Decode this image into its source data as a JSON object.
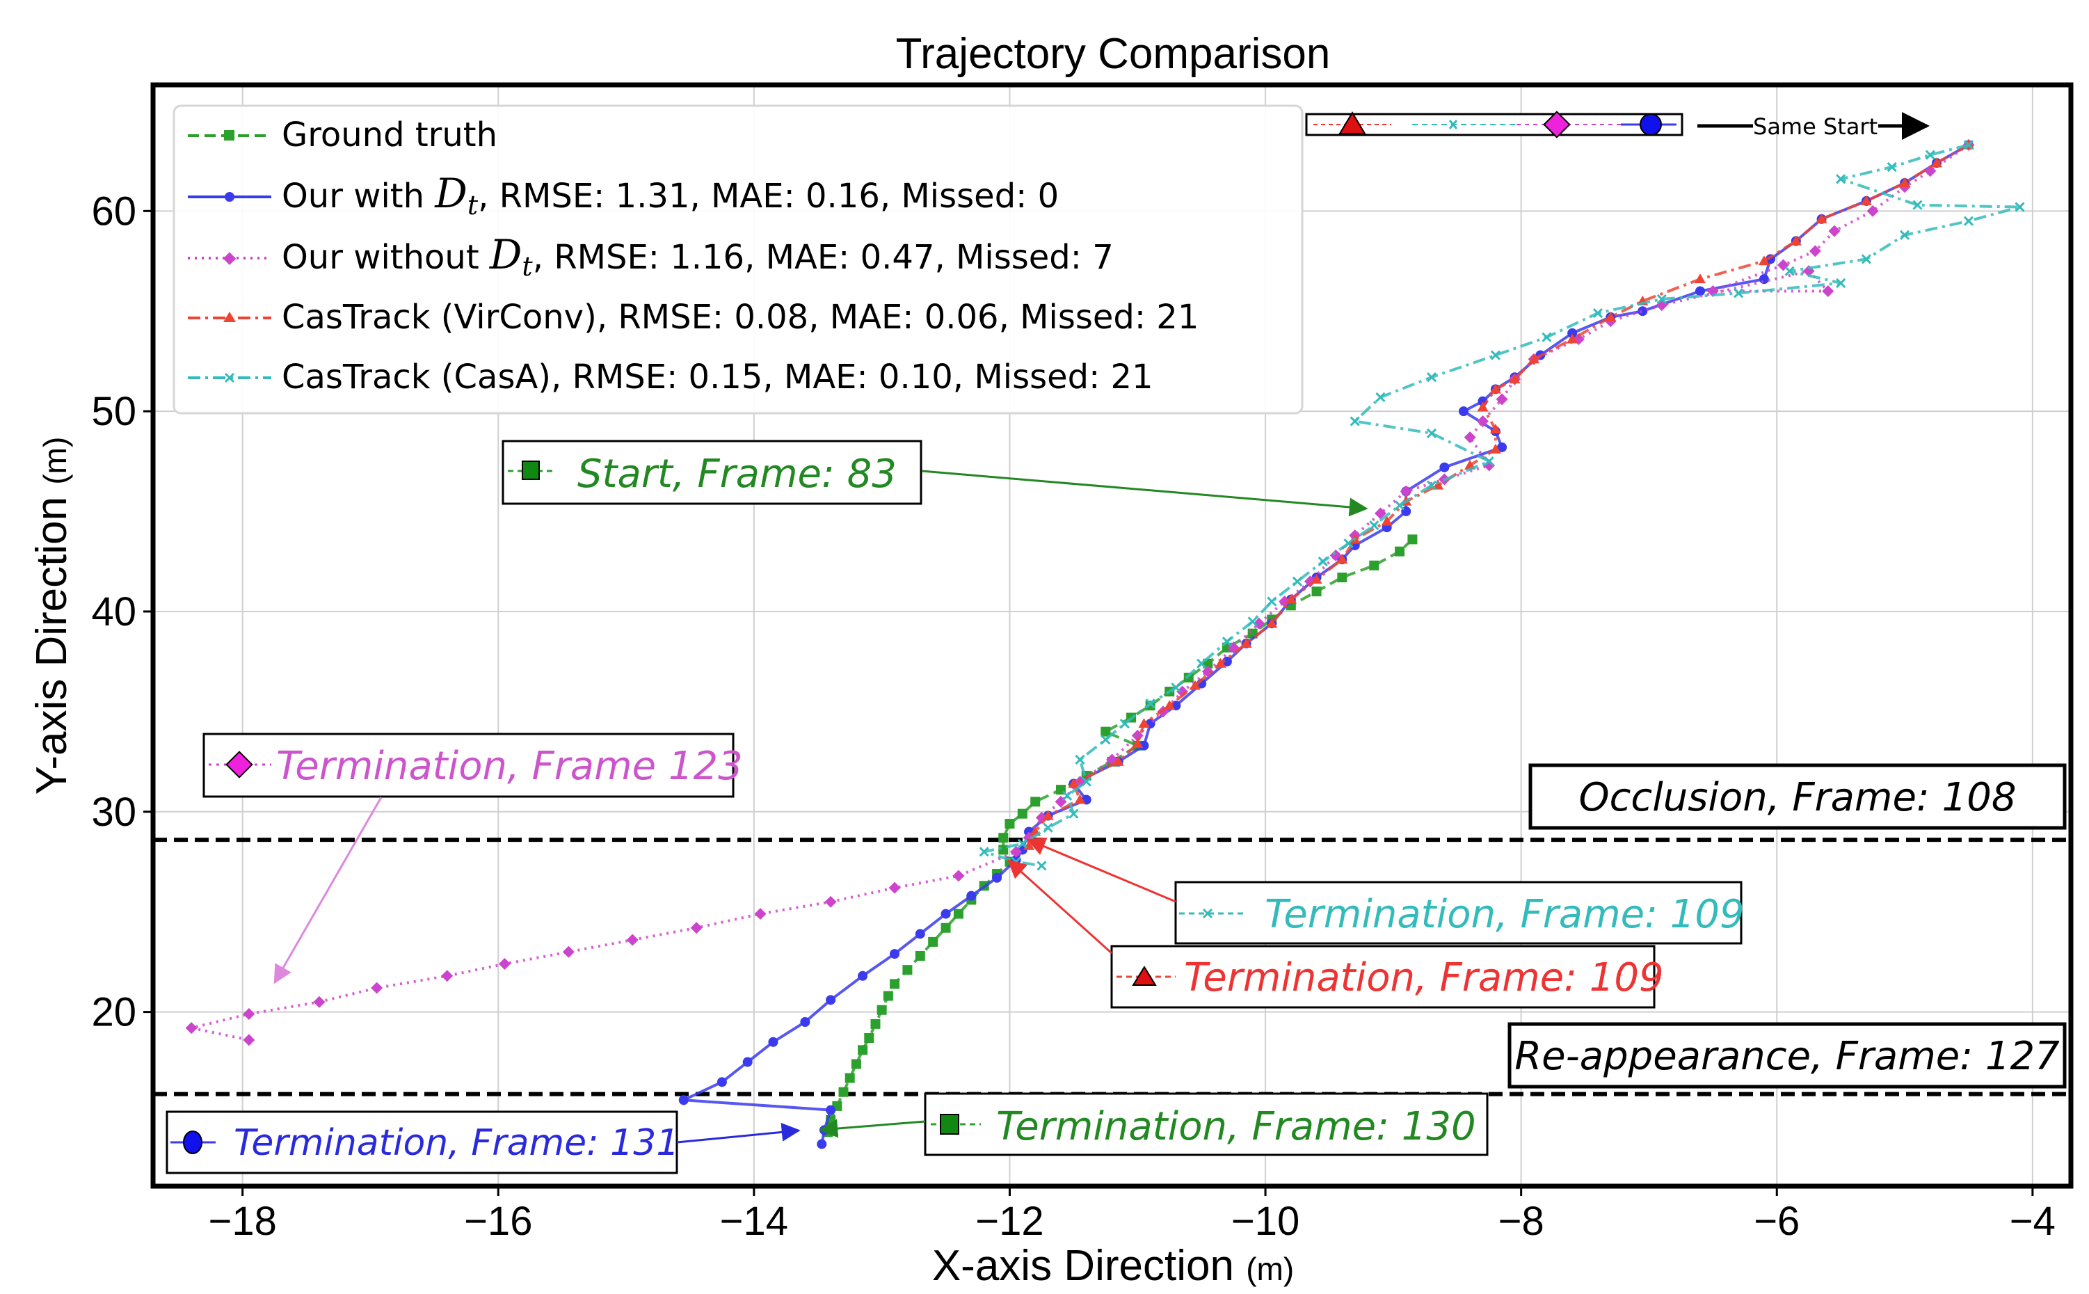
{
  "chart_data": {
    "type": "line",
    "title": "Trajectory Comparison",
    "xlabel": "X-axis Direction",
    "xlabel_unit": "(m)",
    "ylabel": "Y-axis Direction",
    "ylabel_unit": "(m)",
    "xlim": [
      -18.7,
      -3.7
    ],
    "ylim": [
      11.3,
      66.3
    ],
    "grid": true,
    "x_ticks": [
      -18,
      -16,
      -14,
      -12,
      -10,
      -8,
      -6,
      -4
    ],
    "x_tick_labels": [
      "−18",
      "−16",
      "−14",
      "−12",
      "−10",
      "−8",
      "−6",
      "−4"
    ],
    "y_ticks": [
      20,
      30,
      40,
      50,
      60
    ],
    "y_tick_labels": [
      "20",
      "30",
      "40",
      "50",
      "60"
    ],
    "legend_position": "upper-left",
    "legend": [
      {
        "text": "Ground truth"
      },
      {
        "prefix": "Our with ",
        "math": "D",
        "sub": "t",
        "suffix": ", RMSE: 1.31, MAE: 0.16, Missed: 0"
      },
      {
        "prefix": "Our without ",
        "math": "D",
        "sub": "t",
        "suffix": ", RMSE: 1.16, MAE: 0.47, Missed: 7"
      },
      {
        "text": "CasTrack (VirConv), RMSE: 0.08, MAE: 0.06, Missed: 21"
      },
      {
        "text": "CasTrack (CasA), RMSE: 0.15, MAE: 0.10, Missed: 21"
      }
    ],
    "series": [
      {
        "name": "Ground truth",
        "color": "#2ca02c",
        "line": "dashed",
        "marker": "square",
        "points": [
          [
            -8.85,
            43.6
          ],
          [
            -8.95,
            43.0
          ],
          [
            -9.15,
            42.3
          ],
          [
            -9.4,
            41.7
          ],
          [
            -9.6,
            41.0
          ],
          [
            -9.8,
            40.3
          ],
          [
            -9.95,
            39.6
          ],
          [
            -10.1,
            38.9
          ],
          [
            -10.3,
            38.2
          ],
          [
            -10.45,
            37.4
          ],
          [
            -10.6,
            36.7
          ],
          [
            -10.75,
            36.0
          ],
          [
            -10.9,
            35.3
          ],
          [
            -11.05,
            34.7
          ],
          [
            -11.25,
            34.0
          ],
          [
            -11.0,
            33.3
          ],
          [
            -11.2,
            32.5
          ],
          [
            -11.4,
            31.8
          ],
          [
            -11.6,
            31.1
          ],
          [
            -11.8,
            30.5
          ],
          [
            -11.9,
            29.9
          ],
          [
            -12.0,
            29.4
          ],
          [
            -12.05,
            28.7
          ],
          [
            -12.05,
            28.1
          ],
          [
            -12.0,
            27.5
          ],
          [
            -12.1,
            26.9
          ],
          [
            -12.2,
            26.3
          ],
          [
            -12.3,
            25.6
          ],
          [
            -12.4,
            24.9
          ],
          [
            -12.5,
            24.2
          ],
          [
            -12.6,
            23.5
          ],
          [
            -12.7,
            22.8
          ],
          [
            -12.8,
            22.1
          ],
          [
            -12.9,
            21.4
          ],
          [
            -12.95,
            20.8
          ],
          [
            -13.0,
            20.1
          ],
          [
            -13.05,
            19.4
          ],
          [
            -13.1,
            18.7
          ],
          [
            -13.15,
            18.1
          ],
          [
            -13.2,
            17.4
          ],
          [
            -13.25,
            16.7
          ],
          [
            -13.3,
            16.0
          ],
          [
            -13.35,
            15.3
          ],
          [
            -13.4,
            14.6
          ],
          [
            -13.42,
            14.0
          ]
        ]
      },
      {
        "name": "Our with Dt",
        "color": "#3a3aee",
        "line": "solid",
        "marker": "circle",
        "points": [
          [
            -4.5,
            63.3
          ],
          [
            -4.75,
            62.4
          ],
          [
            -5.0,
            61.4
          ],
          [
            -5.3,
            60.5
          ],
          [
            -5.65,
            59.6
          ],
          [
            -5.85,
            58.5
          ],
          [
            -6.05,
            57.6
          ],
          [
            -6.1,
            56.6
          ],
          [
            -6.6,
            56.0
          ],
          [
            -7.05,
            55.0
          ],
          [
            -7.3,
            54.7
          ],
          [
            -7.6,
            53.9
          ],
          [
            -7.85,
            52.8
          ],
          [
            -8.05,
            51.7
          ],
          [
            -8.2,
            51.1
          ],
          [
            -8.3,
            50.5
          ],
          [
            -8.45,
            50.0
          ],
          [
            -8.2,
            49.0
          ],
          [
            -8.15,
            48.2
          ],
          [
            -8.6,
            47.2
          ],
          [
            -8.9,
            46.0
          ],
          [
            -8.9,
            45.0
          ],
          [
            -9.05,
            44.2
          ],
          [
            -9.3,
            43.3
          ],
          [
            -9.4,
            42.6
          ],
          [
            -9.6,
            41.7
          ],
          [
            -9.8,
            40.6
          ],
          [
            -9.95,
            39.4
          ],
          [
            -10.15,
            38.4
          ],
          [
            -10.3,
            37.5
          ],
          [
            -10.5,
            36.4
          ],
          [
            -10.7,
            35.3
          ],
          [
            -10.9,
            34.4
          ],
          [
            -10.95,
            33.3
          ],
          [
            -11.15,
            32.5
          ],
          [
            -11.5,
            31.4
          ],
          [
            -11.4,
            30.6
          ],
          [
            -11.7,
            29.8
          ],
          [
            -11.85,
            29.0
          ],
          [
            -11.9,
            28.1
          ],
          [
            -11.95,
            27.6
          ],
          [
            -12.1,
            26.7
          ],
          [
            -12.3,
            25.8
          ],
          [
            -12.5,
            24.9
          ],
          [
            -12.7,
            23.9
          ],
          [
            -12.9,
            22.9
          ],
          [
            -13.15,
            21.8
          ],
          [
            -13.4,
            20.6
          ],
          [
            -13.6,
            19.5
          ],
          [
            -13.85,
            18.5
          ],
          [
            -14.05,
            17.5
          ],
          [
            -14.25,
            16.5
          ],
          [
            -14.55,
            15.6
          ],
          [
            -13.4,
            15.1
          ],
          [
            -13.45,
            14.1
          ],
          [
            -13.47,
            13.4
          ]
        ]
      },
      {
        "name": "Our without Dt",
        "color": "#cc44cc",
        "line": "dotted",
        "marker": "diamond",
        "points": [
          [
            -4.5,
            63.3
          ],
          [
            -4.8,
            62.0
          ],
          [
            -5.0,
            61.2
          ],
          [
            -5.25,
            60.0
          ],
          [
            -5.55,
            59.0
          ],
          [
            -5.7,
            58.0
          ],
          [
            -5.95,
            57.3
          ],
          [
            -6.5,
            56.0
          ],
          [
            -5.6,
            56.0
          ],
          [
            -5.75,
            57.0
          ],
          [
            -6.9,
            55.3
          ],
          [
            -7.3,
            54.5
          ],
          [
            -7.55,
            53.6
          ],
          [
            -7.9,
            52.6
          ],
          [
            -8.05,
            51.6
          ],
          [
            -8.15,
            50.6
          ],
          [
            -8.3,
            49.5
          ],
          [
            -8.4,
            48.7
          ],
          [
            -8.25,
            47.3
          ],
          [
            -8.6,
            46.6
          ],
          [
            -8.9,
            46.0
          ],
          [
            -9.1,
            44.9
          ],
          [
            -9.3,
            43.8
          ],
          [
            -9.45,
            42.8
          ],
          [
            -9.65,
            41.5
          ],
          [
            -9.85,
            40.5
          ],
          [
            -10.05,
            39.4
          ],
          [
            -10.25,
            38.2
          ],
          [
            -10.45,
            37.0
          ],
          [
            -10.65,
            36.0
          ],
          [
            -10.8,
            35.0
          ],
          [
            -11.0,
            33.8
          ],
          [
            -11.2,
            32.6
          ],
          [
            -11.45,
            31.5
          ],
          [
            -11.6,
            30.5
          ],
          [
            -11.75,
            29.7
          ],
          [
            -11.85,
            28.7
          ],
          [
            -11.95,
            28.0
          ],
          [
            -12.4,
            26.8
          ],
          [
            -12.9,
            26.2
          ],
          [
            -13.4,
            25.5
          ],
          [
            -13.95,
            24.9
          ],
          [
            -14.45,
            24.2
          ],
          [
            -14.95,
            23.6
          ],
          [
            -15.45,
            23.0
          ],
          [
            -15.95,
            22.4
          ],
          [
            -16.4,
            21.8
          ],
          [
            -16.95,
            21.2
          ],
          [
            -17.4,
            20.5
          ],
          [
            -17.95,
            19.9
          ],
          [
            -18.4,
            19.2
          ],
          [
            -17.95,
            18.6
          ]
        ]
      },
      {
        "name": "CasTrack (VirConv)",
        "color": "#ee4433",
        "line": "dashdot",
        "marker": "triangle",
        "points": [
          [
            -4.5,
            63.3
          ],
          [
            -4.75,
            62.4
          ],
          [
            -5.0,
            61.4
          ],
          [
            -5.3,
            60.5
          ],
          [
            -5.65,
            59.6
          ],
          [
            -5.85,
            58.5
          ],
          [
            -6.1,
            57.5
          ],
          [
            -6.6,
            56.6
          ],
          [
            -7.05,
            55.5
          ],
          [
            -7.3,
            54.7
          ],
          [
            -7.6,
            53.6
          ],
          [
            -7.9,
            52.6
          ],
          [
            -8.05,
            51.6
          ],
          [
            -8.2,
            51.1
          ],
          [
            -8.3,
            50.2
          ],
          [
            -8.2,
            49.1
          ],
          [
            -8.2,
            48.1
          ],
          [
            -8.4,
            47.3
          ],
          [
            -8.65,
            46.3
          ],
          [
            -8.9,
            45.5
          ],
          [
            -9.05,
            44.5
          ],
          [
            -9.3,
            43.6
          ],
          [
            -9.4,
            42.6
          ],
          [
            -9.6,
            41.6
          ],
          [
            -9.8,
            40.6
          ],
          [
            -9.95,
            39.4
          ],
          [
            -10.15,
            38.4
          ],
          [
            -10.35,
            37.4
          ],
          [
            -10.55,
            36.3
          ],
          [
            -10.75,
            35.3
          ],
          [
            -10.95,
            34.4
          ],
          [
            -11.0,
            33.4
          ],
          [
            -11.15,
            32.5
          ],
          [
            -11.5,
            31.4
          ],
          [
            -11.45,
            30.6
          ],
          [
            -11.7,
            29.8
          ],
          [
            -11.8,
            29.0
          ],
          [
            -11.85,
            28.3
          ]
        ]
      },
      {
        "name": "CasTrack (CasA)",
        "color": "#33bbbb",
        "line": "dashdot",
        "marker": "x",
        "points": [
          [
            -4.5,
            63.3
          ],
          [
            -4.8,
            62.8
          ],
          [
            -5.1,
            62.2
          ],
          [
            -5.5,
            61.6
          ],
          [
            -4.9,
            60.3
          ],
          [
            -4.1,
            60.2
          ],
          [
            -4.5,
            59.5
          ],
          [
            -5.0,
            58.8
          ],
          [
            -5.3,
            57.6
          ],
          [
            -5.9,
            57.0
          ],
          [
            -5.5,
            56.4
          ],
          [
            -6.3,
            55.9
          ],
          [
            -6.9,
            55.6
          ],
          [
            -7.4,
            54.9
          ],
          [
            -7.8,
            53.7
          ],
          [
            -8.2,
            52.8
          ],
          [
            -8.7,
            51.7
          ],
          [
            -9.1,
            50.7
          ],
          [
            -9.3,
            49.5
          ],
          [
            -8.7,
            48.9
          ],
          [
            -8.25,
            47.5
          ],
          [
            -8.7,
            46.3
          ],
          [
            -8.95,
            45.3
          ],
          [
            -9.15,
            44.3
          ],
          [
            -9.35,
            43.4
          ],
          [
            -9.55,
            42.5
          ],
          [
            -9.75,
            41.5
          ],
          [
            -9.95,
            40.5
          ],
          [
            -10.1,
            39.5
          ],
          [
            -10.3,
            38.5
          ],
          [
            -10.5,
            37.4
          ],
          [
            -10.7,
            36.2
          ],
          [
            -10.9,
            35.4
          ],
          [
            -11.1,
            34.4
          ],
          [
            -11.25,
            33.6
          ],
          [
            -11.45,
            32.6
          ],
          [
            -11.4,
            31.5
          ],
          [
            -11.55,
            30.8
          ],
          [
            -11.5,
            29.9
          ],
          [
            -11.7,
            29.2
          ],
          [
            -11.9,
            28.4
          ],
          [
            -12.2,
            28.0
          ],
          [
            -11.95,
            27.5
          ],
          [
            -11.75,
            27.3
          ]
        ]
      }
    ],
    "reference_lines": [
      {
        "y": 28.6,
        "label": "Occlusion, Frame: 108"
      },
      {
        "y": 15.9,
        "label": "Re-appearance, Frame: 127"
      }
    ],
    "annotations": [
      {
        "text": "Start, Frame: 83",
        "series": "Ground truth",
        "color": "#228822",
        "arrow_to": [
          -8.8,
          44.7
        ]
      },
      {
        "text": "Termination, Frame 123",
        "series": "Our without Dt",
        "color": "#cc55cc",
        "arrow_to": [
          -17.7,
          20.8
        ]
      },
      {
        "text": "Termination, Frame: 109",
        "series": "CasTrack (CasA)",
        "color": "#33bbbb",
        "arrow_to": [
          -11.75,
          27.9
        ]
      },
      {
        "text": "Termination, Frame: 109",
        "series": "CasTrack (VirConv)",
        "color": "#ee3333",
        "arrow_to": [
          -11.95,
          27.1
        ]
      },
      {
        "text": "Termination, Frame: 131",
        "series": "Our with Dt",
        "color": "#2a2add",
        "arrow_to": [
          -13.5,
          13.5
        ]
      },
      {
        "text": "Termination, Frame: 130",
        "series": "Ground truth",
        "color": "#228822",
        "arrow_to": [
          -13.4,
          13.9
        ]
      }
    ],
    "same_start_label": "Same Start"
  }
}
